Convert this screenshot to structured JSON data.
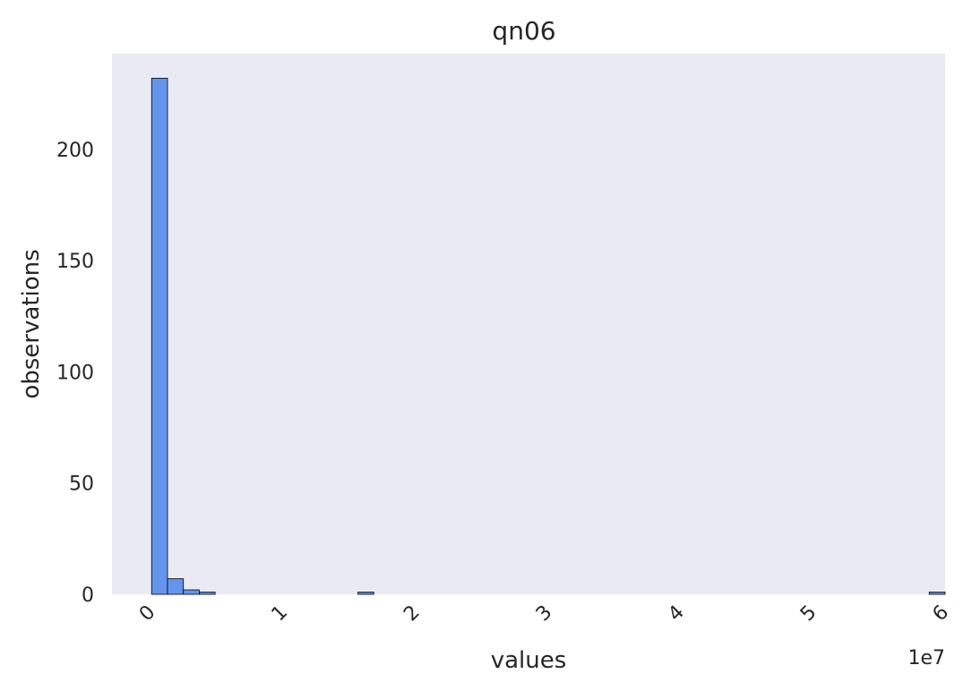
{
  "chart_data": {
    "type": "bar",
    "title": "qn06",
    "xlabel": "values",
    "ylabel": "observations",
    "x_scale_label": "1e7",
    "x_ticks": [
      0,
      1,
      2,
      3,
      4,
      5,
      6
    ],
    "x_tick_labels": [
      "0",
      "1",
      "2",
      "3",
      "4",
      "5",
      "6"
    ],
    "y_ticks": [
      0,
      50,
      100,
      150,
      200
    ],
    "y_tick_labels": [
      "0",
      "50",
      "100",
      "150",
      "200"
    ],
    "xlim": [
      -0.3,
      6.0
    ],
    "ylim": [
      0,
      243
    ],
    "bin_width": 0.12,
    "bins": [
      {
        "x": 0.0,
        "count": 232
      },
      {
        "x": 0.12,
        "count": 7
      },
      {
        "x": 0.24,
        "count": 2
      },
      {
        "x": 0.36,
        "count": 1
      },
      {
        "x": 1.56,
        "count": 1
      },
      {
        "x": 5.88,
        "count": 1
      }
    ],
    "bar_color": "#6495ED",
    "background_color": "#EAEAF2",
    "grid": false
  }
}
